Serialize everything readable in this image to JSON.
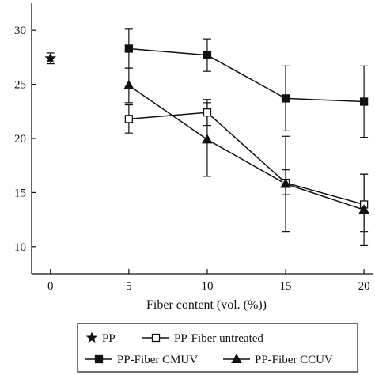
{
  "chart_data": {
    "type": "line",
    "xlabel": "Fiber content (vol. (%))",
    "ylabel": "",
    "xlim": [
      -1.2,
      20.6
    ],
    "ylim": [
      7.5,
      32.5
    ],
    "x_ticks": [
      0,
      5,
      10,
      15,
      20
    ],
    "y_ticks": [
      10,
      15,
      20,
      25,
      30
    ],
    "grid": false,
    "legend_position": "bottom",
    "series": [
      {
        "name": "PP",
        "marker": "star",
        "filled": true,
        "color": "#111111",
        "connect": false,
        "points": [
          {
            "x": 0,
            "y": 27.4,
            "err_low": 26.9,
            "err_high": 27.9
          }
        ]
      },
      {
        "name": "PP-Fiber untreated",
        "marker": "square",
        "filled": false,
        "color": "#111111",
        "connect": true,
        "points": [
          {
            "x": 5,
            "y": 21.8,
            "err_low": 20.5,
            "err_high": 23.1
          },
          {
            "x": 10,
            "y": 22.4,
            "err_low": 21.2,
            "err_high": 23.6
          },
          {
            "x": 15,
            "y": 15.9,
            "err_low": 14.8,
            "err_high": 17.1
          },
          {
            "x": 20,
            "y": 13.9,
            "err_low": 11.4,
            "err_high": 16.7
          }
        ]
      },
      {
        "name": "PP-Fiber CMUV",
        "marker": "square",
        "filled": true,
        "color": "#111111",
        "connect": true,
        "points": [
          {
            "x": 5,
            "y": 28.3,
            "err_low": 26.5,
            "err_high": 30.1
          },
          {
            "x": 10,
            "y": 27.7,
            "err_low": 26.2,
            "err_high": 29.2
          },
          {
            "x": 15,
            "y": 23.7,
            "err_low": 20.7,
            "err_high": 26.7
          },
          {
            "x": 20,
            "y": 23.4,
            "err_low": 20.1,
            "err_high": 26.7
          }
        ]
      },
      {
        "name": "PP-Fiber CCUV",
        "marker": "triangle",
        "filled": true,
        "color": "#111111",
        "connect": true,
        "points": [
          {
            "x": 5,
            "y": 24.9,
            "err_low": 23.3,
            "err_high": 26.5
          },
          {
            "x": 10,
            "y": 19.9,
            "err_low": 16.5,
            "err_high": 23.3
          },
          {
            "x": 15,
            "y": 15.8,
            "err_low": 11.4,
            "err_high": 20.2
          },
          {
            "x": 20,
            "y": 13.4,
            "err_low": 10.1,
            "err_high": 16.7
          }
        ]
      }
    ]
  }
}
